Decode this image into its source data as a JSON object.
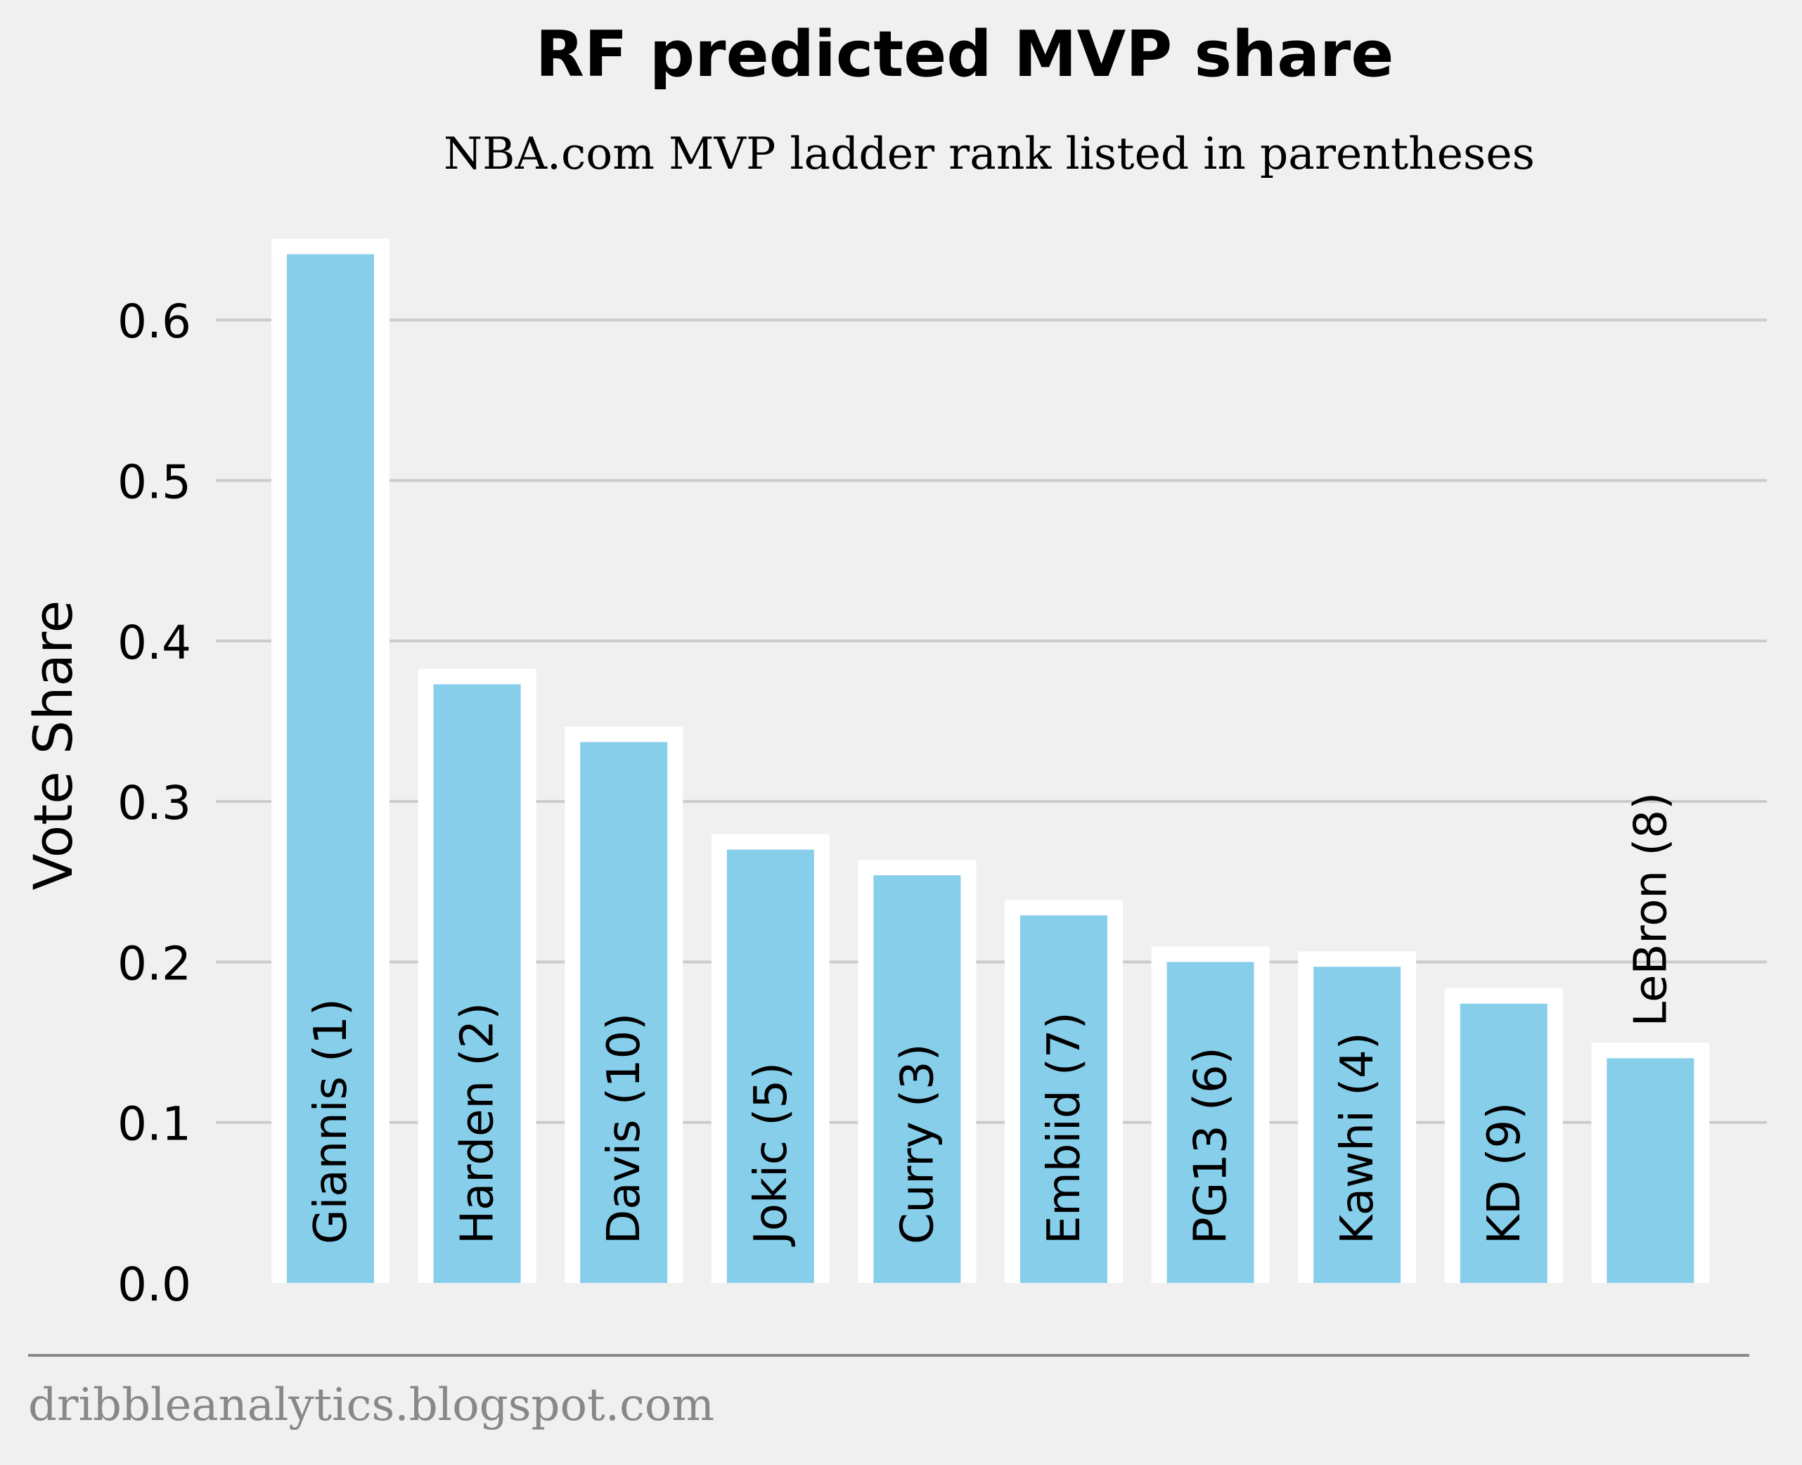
{
  "chart_data": {
    "type": "bar",
    "title": "RF predicted MVP share",
    "subtitle": "NBA.com MVP ladder rank listed in parentheses",
    "ylabel": "Vote Share",
    "xlabel": "",
    "categories": [
      "Giannis (1)",
      "Harden (2)",
      "Davis (10)",
      "Jokic (5)",
      "Curry (3)",
      "Embiid (7)",
      "PG13 (6)",
      "Kawhi (4)",
      "KD (9)",
      "LeBron (8)"
    ],
    "values": [
      0.641,
      0.373,
      0.337,
      0.27,
      0.254,
      0.229,
      0.2,
      0.197,
      0.174,
      0.14
    ],
    "ylim": [
      0,
      0.65
    ],
    "yticks": [
      0.0,
      0.1,
      0.2,
      0.3,
      0.4,
      0.5,
      0.6
    ],
    "ytick_labels": [
      "0.0",
      "0.1",
      "0.2",
      "0.3",
      "0.4",
      "0.5",
      "0.6"
    ],
    "grid": true,
    "bar_color": "#87ceeb",
    "bar_edge_color": "#ffffff",
    "grid_color": "#cbcbcb",
    "background": "#f0f0f0"
  },
  "footer": {
    "source": "dribbleanalytics.blogspot.com"
  },
  "colors": {
    "footer_text": "#888888",
    "footer_rule": "#888888"
  }
}
